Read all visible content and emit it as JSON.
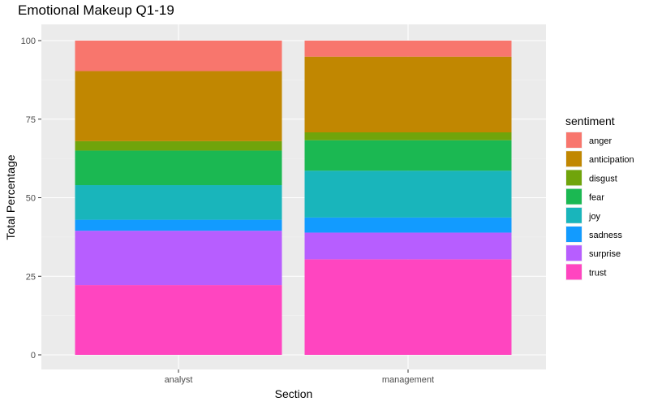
{
  "chart_data": {
    "type": "bar",
    "stacked": true,
    "title": "Emotional Makeup Q1-19",
    "xlabel": "Section",
    "ylabel": "Total Percentage",
    "categories": [
      "analyst",
      "management"
    ],
    "ylim": [
      0,
      100
    ],
    "yticks": [
      0,
      25,
      50,
      75,
      100
    ],
    "grid": true,
    "legend": {
      "title": "sentiment",
      "position": "right"
    },
    "series": [
      {
        "name": "trust",
        "color": "#FF45C0",
        "values": [
          22.2,
          30.4
        ]
      },
      {
        "name": "surprise",
        "color": "#B75EFF",
        "values": [
          17.3,
          8.5
        ]
      },
      {
        "name": "sadness",
        "color": "#129BFF",
        "values": [
          3.5,
          4.8
        ]
      },
      {
        "name": "joy",
        "color": "#19B5BB",
        "values": [
          11.0,
          14.9
        ]
      },
      {
        "name": "fear",
        "color": "#1BB852",
        "values": [
          11.0,
          9.7
        ]
      },
      {
        "name": "disgust",
        "color": "#70A40B",
        "values": [
          3.0,
          2.5
        ]
      },
      {
        "name": "anticipation",
        "color": "#C18701",
        "values": [
          22.3,
          24.1
        ]
      },
      {
        "name": "anger",
        "color": "#F8766D",
        "values": [
          9.7,
          5.1
        ]
      }
    ],
    "legend_order": [
      "anger",
      "anticipation",
      "disgust",
      "fear",
      "joy",
      "sadness",
      "surprise",
      "trust"
    ]
  }
}
